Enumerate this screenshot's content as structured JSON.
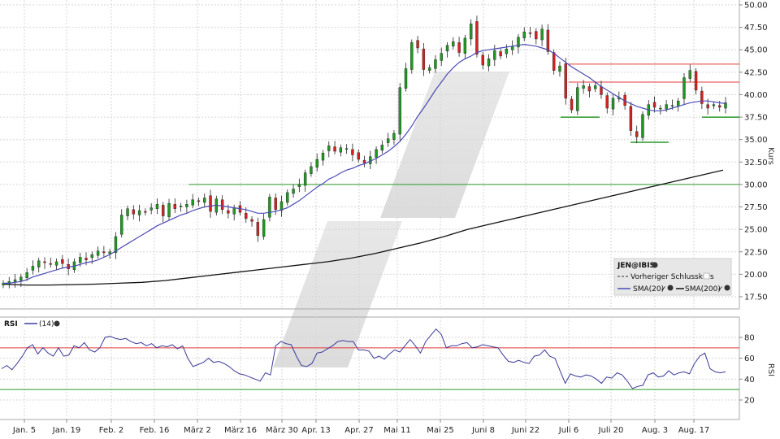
{
  "colors": {
    "up": "#1f9a1f",
    "down": "#d42222",
    "sma20": "#4b4bb8",
    "sma200": "#111111",
    "resistance": "#e23a3a",
    "support": "#2a9a2a",
    "rsi_line": "#3a3a9a",
    "rsi_over": "#e23a3a",
    "rsi_under": "#2a9a2a",
    "grid": "#d6d6d6"
  },
  "chart_data": [
    {
      "type": "candlestick",
      "name": "JEN@IBIS",
      "ylabel": "Kurs",
      "ylim": [
        15,
        50
      ],
      "yticks": [
        "50.00",
        "47.50",
        "45.00",
        "42.50",
        "40.00",
        "37.50",
        "35.00",
        "32.50",
        "30.00",
        "27.50",
        "25.00",
        "22.50",
        "20.00",
        "17.50"
      ],
      "xticks": [
        "Jan. 5",
        "Jan. 19",
        "Feb. 2",
        "Feb. 16",
        "März 2",
        "März 16",
        "März 30",
        "Apr. 13",
        "Apr. 27",
        "Mai 11",
        "Mai 25",
        "Juni 8",
        "Juni 22",
        "Juli 6",
        "Juli 20",
        "Aug. 3",
        "Aug. 17"
      ],
      "grid": true,
      "legend_position": "bottom-right",
      "legend": {
        "title": "JEN@IBIS",
        "items": [
          "Vorheriger Schlusskurs",
          "SMA(20)",
          "SMA(200)"
        ]
      },
      "candles_close": [
        19.0,
        19.2,
        19.4,
        19.7,
        20.2,
        20.9,
        21.5,
        21.3,
        21.1,
        21.4,
        21.2,
        20.6,
        21.4,
        21.9,
        21.6,
        22.2,
        22.6,
        22.4,
        22.5,
        24.2,
        26.6,
        27.3,
        26.7,
        27.1,
        26.9,
        27.4,
        27.8,
        26.5,
        27.9,
        27.3,
        27.6,
        27.8,
        28.3,
        28.1,
        28.5,
        27.0,
        28.4,
        27.2,
        26.8,
        27.4,
        26.9,
        26.2,
        25.9,
        24.3,
        26.1,
        28.6,
        27.2,
        28.1,
        29.1,
        29.5,
        30.0,
        31.3,
        32.0,
        32.8,
        33.5,
        34.3,
        33.7,
        34.1,
        34.0,
        33.3,
        32.8,
        32.4,
        33.1,
        33.9,
        34.4,
        35.1,
        35.7,
        40.8,
        42.9,
        45.8,
        45.2,
        42.8,
        43.0,
        43.9,
        44.6,
        45.5,
        45.9,
        44.7,
        46.3,
        47.9,
        44.5,
        43.3,
        44.0,
        44.9,
        44.3,
        45.1,
        45.4,
        46.4,
        47.0,
        46.8,
        46.2,
        47.3,
        44.8,
        42.7,
        43.2,
        39.6,
        38.3,
        40.8,
        41.0,
        40.4,
        41.0,
        40.0,
        38.5,
        39.6,
        39.7,
        38.8,
        36.0,
        35.3,
        37.8,
        38.9,
        38.6,
        38.5,
        38.9,
        38.8,
        39.3,
        41.9,
        42.7,
        40.5,
        39.0,
        38.5,
        38.9,
        38.6,
        39.1
      ],
      "sma20": [
        19.0,
        19.0,
        19.1,
        19.2,
        19.4,
        19.7,
        19.9,
        20.1,
        20.3,
        20.5,
        20.7,
        20.8,
        20.9,
        21.1,
        21.3,
        21.4,
        21.6,
        21.9,
        22.2,
        22.6,
        23.0,
        23.4,
        23.8,
        24.2,
        24.6,
        25.0,
        25.4,
        25.7,
        26.0,
        26.3,
        26.6,
        26.8,
        27.1,
        27.3,
        27.5,
        27.6,
        27.7,
        27.6,
        27.5,
        27.4,
        27.3,
        27.2,
        27.0,
        26.8,
        26.8,
        26.9,
        27.0,
        27.2,
        27.4,
        27.8,
        28.2,
        28.7,
        29.2,
        29.7,
        30.1,
        30.6,
        30.9,
        31.3,
        31.6,
        31.8,
        32.1,
        32.3,
        32.6,
        32.9,
        33.3,
        33.7,
        34.2,
        34.8,
        35.6,
        36.5,
        37.6,
        38.5,
        39.5,
        40.5,
        41.4,
        42.3,
        43.0,
        43.6,
        44.0,
        44.3,
        44.7,
        44.9,
        45.0,
        45.1,
        45.2,
        45.3,
        45.4,
        45.5,
        45.6,
        45.5,
        45.4,
        45.2,
        45.0,
        44.6,
        44.1,
        43.6,
        43.1,
        42.7,
        42.3,
        41.9,
        41.4,
        40.9,
        40.5,
        40.1,
        39.7,
        39.3,
        39.0,
        38.7,
        38.5,
        38.3,
        38.2,
        38.2,
        38.3,
        38.5,
        38.7,
        38.9,
        39.1,
        39.2,
        39.3,
        39.3,
        39.2,
        39.1,
        39.0
      ],
      "sma200": [
        18.9,
        18.8,
        18.8,
        18.85,
        18.9,
        19.0,
        19.1,
        19.3,
        19.6,
        19.9,
        20.2,
        20.5,
        20.8,
        21.1,
        21.4,
        21.8,
        22.3,
        22.9,
        23.5,
        24.2,
        25.0,
        25.6,
        26.2,
        26.8,
        27.4,
        28.0,
        28.6,
        29.2,
        29.8,
        30.4,
        31.0,
        31.6
      ],
      "resistance_levels": [
        43.4,
        41.4
      ],
      "support_levels": [
        37.5,
        34.7,
        30.0
      ],
      "support_segments": [
        {
          "y": 37.5,
          "from": "Juli 6",
          "to": "Juli 20"
        },
        {
          "y": 34.7,
          "from": "Aug. 3",
          "to": "Aug. 3"
        },
        {
          "y": 37.5,
          "from": "Aug. 17",
          "to": "end"
        }
      ]
    },
    {
      "type": "line",
      "name": "RSI",
      "series": [
        {
          "name": "(14)"
        }
      ],
      "ylim": [
        10,
        95
      ],
      "yticks": [
        "80",
        "60",
        "40",
        "20"
      ],
      "ylabel": "RSI",
      "levels": {
        "upper": 70,
        "lower": 30
      },
      "values": [
        50,
        53,
        49,
        55,
        62,
        70,
        73,
        64,
        70,
        65,
        62,
        70,
        62,
        63,
        72,
        70,
        75,
        68,
        66,
        70,
        80,
        81,
        79,
        78,
        79,
        76,
        74,
        75,
        72,
        74,
        70,
        72,
        71,
        73,
        69,
        72,
        60,
        52,
        54,
        56,
        60,
        56,
        57,
        55,
        52,
        48,
        45,
        44,
        42,
        40,
        38,
        46,
        44,
        72,
        76,
        74,
        73,
        62,
        53,
        52,
        55,
        65,
        66,
        69,
        72,
        76,
        77,
        76,
        76,
        68,
        68,
        67,
        60,
        62,
        59,
        64,
        68,
        66,
        72,
        78,
        72,
        65,
        76,
        82,
        88,
        83,
        70,
        72,
        72,
        74,
        75,
        70,
        71,
        73,
        72,
        71,
        70,
        63,
        57,
        56,
        58,
        56,
        55,
        62,
        63,
        68,
        62,
        60,
        48,
        36,
        45,
        43,
        42,
        44,
        43,
        40,
        36,
        42,
        41,
        46,
        44,
        38,
        31,
        33,
        34,
        44,
        46,
        42,
        43,
        48,
        44,
        46,
        47,
        45,
        55,
        62,
        65,
        50,
        47,
        46,
        47
      ]
    }
  ]
}
